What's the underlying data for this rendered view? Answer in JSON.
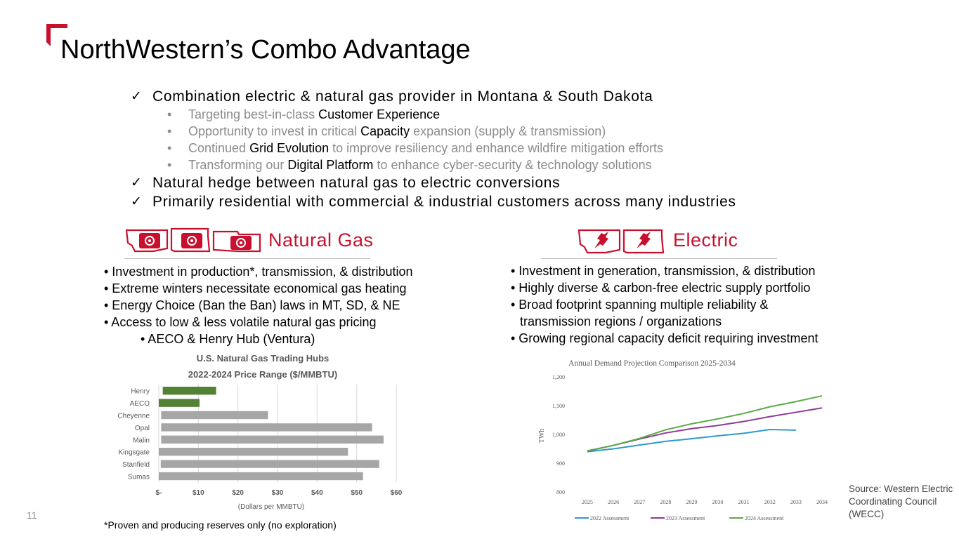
{
  "title": "NorthWestern’s Combo Advantage",
  "page_number": "11",
  "accent_color": "#c8102e",
  "checklist": [
    {
      "text": "Combination electric & natural gas provider in Montana & South Dakota",
      "subitems": [
        {
          "before": "Targeting best-in-class ",
          "emph": "Customer Experience",
          "after": ""
        },
        {
          "before": "Opportunity to invest in critical ",
          "emph": "Capacity",
          "after": " expansion (supply & transmission)"
        },
        {
          "before": "Continued ",
          "emph": "Grid Evolution",
          "after": " to improve resiliency and enhance wildfire mitigation efforts"
        },
        {
          "before": "Transforming our ",
          "emph": "Digital Platform",
          "after": " to enhance cyber-security & technology solutions"
        }
      ]
    },
    {
      "text": "Natural hedge between natural gas to electric conversions"
    },
    {
      "text": "Primarily residential with commercial & industrial customers across many industries"
    }
  ],
  "natural_gas": {
    "heading": "Natural Gas",
    "icon": "gas-valve-state-map-icon",
    "bullets": [
      "• Investment in production*, transmission, & distribution",
      "• Extreme winters necessitate economical gas heating",
      "• Energy Choice (Ban the Ban) laws in MT, SD, & NE",
      "• Access to low & less volatile natural gas pricing",
      "• AECO & Henry Hub (Ventura)"
    ]
  },
  "electric": {
    "heading": "Electric",
    "icon": "electric-plug-state-map-icon",
    "bullets": [
      "• Investment in generation, transmission, & distribution",
      "• Highly diverse & carbon-free electric supply portfolio",
      "• Broad footprint spanning multiple reliability &",
      "transmission regions / organizations",
      "• Growing regional capacity deficit requiring investment"
    ]
  },
  "footnote": "*Proven and producing reserves only (no exploration)",
  "source": "Source: Western Electric Coordinating Council (WECC)",
  "chart_data": [
    {
      "type": "bar",
      "orientation": "horizontal",
      "title": "U.S. Natural Gas Trading Hubs",
      "subtitle": "2022-2024 Price Range ($/MMBTU)",
      "xlabel": "(Dollars per MMBTU)",
      "categories": [
        "Henry",
        "AECO",
        "Cheyenne",
        "Opal",
        "Malin",
        "Kingsgate",
        "Stanfield",
        "Sumas"
      ],
      "ranges": [
        [
          1,
          14.5
        ],
        [
          0,
          10.3
        ],
        [
          0.6,
          27.6
        ],
        [
          0.6,
          53.9
        ],
        [
          0.6,
          56.8
        ],
        [
          0,
          47.8
        ],
        [
          0.5,
          55.7
        ],
        [
          0,
          51.6
        ]
      ],
      "highlight": [
        "Henry",
        "AECO"
      ],
      "colors": {
        "highlight": "#548235",
        "default": "#a6a6a6",
        "grid": "#d9d9d9"
      },
      "xticks": [
        "$-",
        "$10",
        "$20",
        "$30",
        "$40",
        "$50",
        "$60"
      ],
      "xlim": [
        0,
        60
      ],
      "grid": true
    },
    {
      "type": "line",
      "title": "Annual Demand Projection Comparison 2025-2034",
      "ylabel": "TWh",
      "x": [
        "2025",
        "2026",
        "2027",
        "2028",
        "2029",
        "2030",
        "2031",
        "2032",
        "2033",
        "2034"
      ],
      "yticks": [
        "800",
        "900",
        "1,000",
        "1,100",
        "1,200"
      ],
      "ylim": [
        800,
        1200
      ],
      "series": [
        {
          "name": "2022 Assessment",
          "color": "#2e9ad0",
          "values": [
            940,
            950,
            963,
            976,
            985,
            995,
            1004,
            1017,
            1015,
            null
          ]
        },
        {
          "name": "2023 Assessment",
          "color": "#8e3a96",
          "values": [
            942,
            962,
            984,
            1005,
            1020,
            1031,
            1045,
            1062,
            1077,
            1092
          ]
        },
        {
          "name": "2024 Assessment",
          "color": "#5aaa46",
          "values": [
            943,
            962,
            986,
            1016,
            1037,
            1054,
            1073,
            1096,
            1114,
            1134
          ]
        }
      ],
      "legend": "bottom"
    }
  ]
}
